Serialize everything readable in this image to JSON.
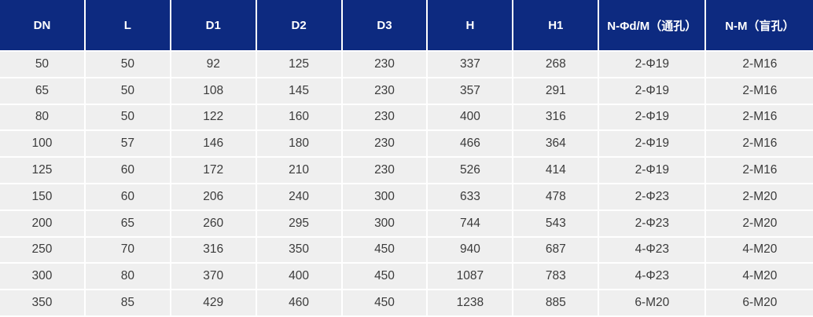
{
  "colors": {
    "header_bg": "#0d2a80",
    "header_text": "#ffffff",
    "cell_bg": "#efefef",
    "cell_text": "#3b3b3b",
    "divider": "#ffffff"
  },
  "chart_data": {
    "type": "table",
    "columns": [
      "DN",
      "L",
      "D1",
      "D2",
      "D3",
      "H",
      "H1",
      "N-Φd/M（通孔）",
      "N-M（盲孔）"
    ],
    "rows": [
      [
        "50",
        "50",
        "92",
        "125",
        "230",
        "337",
        "268",
        "2-Φ19",
        "2-M16"
      ],
      [
        "65",
        "50",
        "108",
        "145",
        "230",
        "357",
        "291",
        "2-Φ19",
        "2-M16"
      ],
      [
        "80",
        "50",
        "122",
        "160",
        "230",
        "400",
        "316",
        "2-Φ19",
        "2-M16"
      ],
      [
        "100",
        "57",
        "146",
        "180",
        "230",
        "466",
        "364",
        "2-Φ19",
        "2-M16"
      ],
      [
        "125",
        "60",
        "172",
        "210",
        "230",
        "526",
        "414",
        "2-Φ19",
        "2-M16"
      ],
      [
        "150",
        "60",
        "206",
        "240",
        "300",
        "633",
        "478",
        "2-Φ23",
        "2-M20"
      ],
      [
        "200",
        "65",
        "260",
        "295",
        "300",
        "744",
        "543",
        "2-Φ23",
        "2-M20"
      ],
      [
        "250",
        "70",
        "316",
        "350",
        "450",
        "940",
        "687",
        "4-Φ23",
        "4-M20"
      ],
      [
        "300",
        "80",
        "370",
        "400",
        "450",
        "1087",
        "783",
        "4-Φ23",
        "4-M20"
      ],
      [
        "350",
        "85",
        "429",
        "460",
        "450",
        "1238",
        "885",
        "6-M20",
        "6-M20"
      ]
    ]
  }
}
